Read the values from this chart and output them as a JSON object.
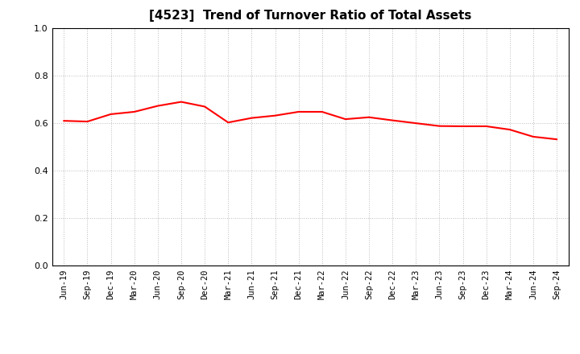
{
  "title": "[4523]  Trend of Turnover Ratio of Total Assets",
  "title_fontsize": 11,
  "line_color": "#ff0000",
  "line_width": 1.5,
  "background_color": "#ffffff",
  "grid_color": "#bbbbbb",
  "ylim": [
    0.0,
    1.0
  ],
  "yticks": [
    0.0,
    0.2,
    0.4,
    0.6,
    0.8,
    1.0
  ],
  "x_labels": [
    "Jun-19",
    "Sep-19",
    "Dec-19",
    "Mar-20",
    "Jun-20",
    "Sep-20",
    "Dec-20",
    "Mar-21",
    "Jun-21",
    "Sep-21",
    "Dec-21",
    "Mar-22",
    "Jun-22",
    "Sep-22",
    "Dec-22",
    "Mar-23",
    "Jun-23",
    "Sep-23",
    "Dec-23",
    "Mar-24",
    "Jun-24",
    "Sep-24"
  ],
  "values": [
    0.61,
    0.607,
    0.638,
    0.648,
    0.673,
    0.69,
    0.67,
    0.603,
    0.622,
    0.632,
    0.648,
    0.648,
    0.617,
    0.625,
    0.612,
    0.6,
    0.588,
    0.587,
    0.587,
    0.573,
    0.543,
    0.532
  ]
}
